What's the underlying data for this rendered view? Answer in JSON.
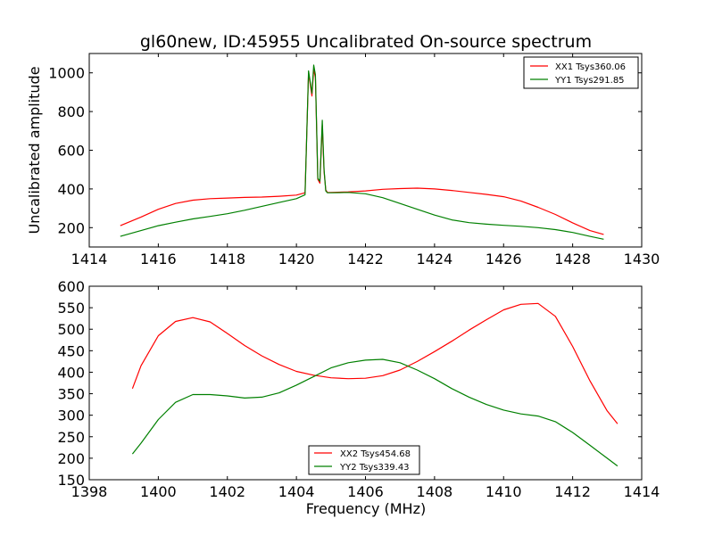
{
  "page": {
    "title": "gl60new, ID:45955 Uncalibrated On-source spectrum"
  },
  "chart_data": [
    {
      "type": "line",
      "title": "gl60new, ID:45955 Uncalibrated On-source spectrum",
      "xlabel": "",
      "ylabel": "Uncalibrated amplitude",
      "xlim": [
        1414,
        1430
      ],
      "ylim": [
        100,
        1100
      ],
      "x_ticks": [
        1414,
        1416,
        1418,
        1420,
        1422,
        1424,
        1426,
        1428,
        1430
      ],
      "y_ticks": [
        200,
        400,
        600,
        800,
        1000
      ],
      "grid": false,
      "legend_position": "top-right",
      "series": [
        {
          "name": "XX1 Tsys360.06",
          "color": "#ff0000",
          "x": [
            1414.9,
            1415.5,
            1416.0,
            1416.5,
            1417.0,
            1417.5,
            1418.0,
            1418.5,
            1419.0,
            1419.5,
            1420.0,
            1420.25,
            1420.35,
            1420.45,
            1420.5,
            1420.55,
            1420.62,
            1420.68,
            1420.75,
            1420.8,
            1420.85,
            1420.9,
            1421.0,
            1421.5,
            1422.0,
            1422.5,
            1423.0,
            1423.5,
            1424.0,
            1424.5,
            1425.0,
            1425.5,
            1426.0,
            1426.5,
            1427.0,
            1427.5,
            1428.0,
            1428.5,
            1428.9
          ],
          "y": [
            210,
            255,
            295,
            325,
            342,
            350,
            353,
            356,
            358,
            362,
            368,
            380,
            1000,
            880,
            1020,
            975,
            450,
            430,
            730,
            490,
            395,
            382,
            382,
            385,
            390,
            398,
            402,
            404,
            400,
            392,
            382,
            372,
            360,
            338,
            305,
            268,
            225,
            185,
            165
          ]
        },
        {
          "name": "YY1 Tsys291.85",
          "color": "#008000",
          "x": [
            1414.9,
            1415.5,
            1416.0,
            1416.5,
            1417.0,
            1417.5,
            1418.0,
            1418.5,
            1419.0,
            1419.5,
            1420.0,
            1420.25,
            1420.35,
            1420.45,
            1420.5,
            1420.55,
            1420.62,
            1420.68,
            1420.75,
            1420.8,
            1420.85,
            1420.9,
            1421.0,
            1421.5,
            1422.0,
            1422.5,
            1423.0,
            1423.5,
            1424.0,
            1424.5,
            1425.0,
            1425.5,
            1426.0,
            1426.5,
            1427.0,
            1427.5,
            1428.0,
            1428.5,
            1428.9
          ],
          "y": [
            155,
            185,
            210,
            228,
            245,
            258,
            272,
            290,
            310,
            330,
            350,
            370,
            1010,
            895,
            1040,
            990,
            455,
            440,
            755,
            500,
            390,
            380,
            380,
            382,
            375,
            355,
            325,
            295,
            265,
            240,
            226,
            218,
            212,
            207,
            200,
            190,
            175,
            155,
            140
          ]
        }
      ]
    },
    {
      "type": "line",
      "title": "",
      "xlabel": "Frequency (MHz)",
      "ylabel": "",
      "xlim": [
        1398,
        1414
      ],
      "ylim": [
        150,
        600
      ],
      "x_ticks": [
        1398,
        1400,
        1402,
        1404,
        1406,
        1408,
        1410,
        1412,
        1414
      ],
      "y_ticks": [
        150,
        200,
        250,
        300,
        350,
        400,
        450,
        500,
        550,
        600
      ],
      "grid": false,
      "legend_position": "bottom-center",
      "series": [
        {
          "name": "XX2 Tsys454.68",
          "color": "#ff0000",
          "x": [
            1399.25,
            1399.5,
            1400.0,
            1400.5,
            1401.0,
            1401.5,
            1402.0,
            1402.5,
            1403.0,
            1403.5,
            1404.0,
            1404.5,
            1405.0,
            1405.5,
            1406.0,
            1406.5,
            1407.0,
            1407.5,
            1408.0,
            1408.5,
            1409.0,
            1409.5,
            1410.0,
            1410.5,
            1411.0,
            1411.5,
            1412.0,
            1412.5,
            1413.0,
            1413.3
          ],
          "y": [
            362,
            415,
            485,
            518,
            527,
            517,
            490,
            462,
            438,
            418,
            402,
            393,
            387,
            385,
            386,
            392,
            405,
            425,
            448,
            472,
            498,
            522,
            545,
            558,
            560,
            530,
            460,
            380,
            310,
            280
          ]
        },
        {
          "name": "YY2 Tsys339.43",
          "color": "#008000",
          "x": [
            1399.25,
            1399.5,
            1400.0,
            1400.5,
            1401.0,
            1401.5,
            1402.0,
            1402.5,
            1403.0,
            1403.5,
            1404.0,
            1404.5,
            1405.0,
            1405.5,
            1406.0,
            1406.5,
            1407.0,
            1407.5,
            1408.0,
            1408.5,
            1409.0,
            1409.5,
            1410.0,
            1410.5,
            1411.0,
            1411.5,
            1412.0,
            1412.5,
            1413.0,
            1413.3
          ],
          "y": [
            210,
            235,
            290,
            330,
            348,
            348,
            345,
            340,
            342,
            352,
            370,
            390,
            410,
            422,
            428,
            430,
            422,
            405,
            385,
            362,
            342,
            325,
            312,
            303,
            298,
            285,
            260,
            230,
            200,
            182
          ]
        }
      ]
    }
  ]
}
